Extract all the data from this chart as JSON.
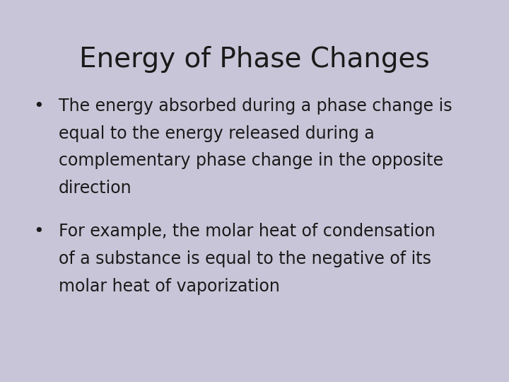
{
  "title": "Energy of Phase Changes",
  "background_color": "#c8c5d8",
  "title_color": "#1a1a1a",
  "text_color": "#1a1a1a",
  "title_fontsize": 28,
  "body_fontsize": 17,
  "bullet1_lines": [
    "The energy absorbed during a phase change is",
    "equal to the energy released during a",
    "complementary phase change in the opposite",
    "direction"
  ],
  "bullet2_lines": [
    "For example, the molar heat of condensation",
    "of a substance is equal to the negative of its",
    "molar heat of vaporization"
  ]
}
